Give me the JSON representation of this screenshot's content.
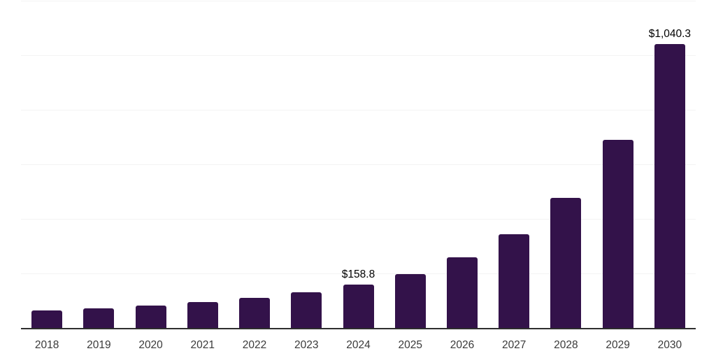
{
  "chart_data": {
    "type": "bar",
    "title": "",
    "xlabel": "",
    "ylabel": "",
    "categories": [
      "2018",
      "2019",
      "2020",
      "2021",
      "2022",
      "2023",
      "2024",
      "2025",
      "2026",
      "2027",
      "2028",
      "2029",
      "2030"
    ],
    "values": [
      64,
      72,
      82,
      95,
      110,
      131,
      158.8,
      197,
      259,
      343,
      476,
      689,
      1040.3
    ],
    "point_labels": [
      "",
      "",
      "",
      "",
      "",
      "",
      "$158.8",
      "",
      "",
      "",
      "",
      "",
      "$1,040.3"
    ],
    "ylim": [
      0,
      1200
    ],
    "grid_step": 200,
    "grid": "horizontal",
    "y_tick_labels_visible": false,
    "legend_position": "none",
    "colors": {
      "bar": "#33124a",
      "axis_line": "#2e2e2e",
      "gridline": "#f3f3f3",
      "x_tick_label": "#3a3a3a",
      "value_label": "#000000",
      "background": "#ffffff"
    }
  }
}
